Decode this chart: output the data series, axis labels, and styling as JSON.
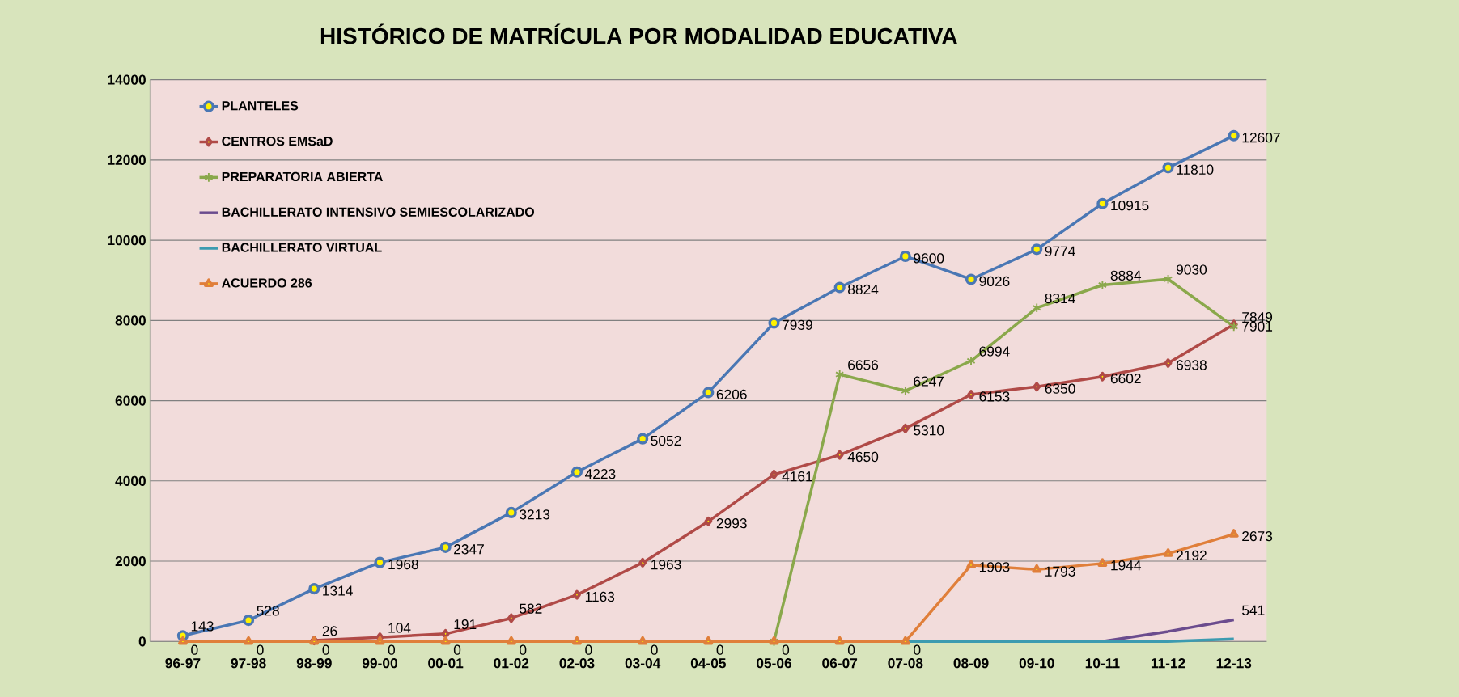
{
  "chart_data": {
    "type": "line",
    "title": "HISTÓRICO DE MATRÍCULA POR MODALIDAD EDUCATIVA",
    "categories": [
      "96-97",
      "97-98",
      "98-99",
      "99-00",
      "00-01",
      "01-02",
      "02-03",
      "03-04",
      "04-05",
      "05-06",
      "06-07",
      "07-08",
      "08-09",
      "09-10",
      "10-11",
      "11-12",
      "12-13"
    ],
    "ylim": [
      0,
      14000
    ],
    "yticks": [
      0,
      2000,
      4000,
      6000,
      8000,
      10000,
      12000,
      14000
    ],
    "grid": "y",
    "legend": "top left",
    "series": [
      {
        "name": "PLANTELES",
        "color": "#4a77b4",
        "marker": "circle",
        "values": [
          143,
          528,
          1314,
          1968,
          2347,
          3213,
          4223,
          5052,
          6206,
          7939,
          8824,
          9600,
          9026,
          9774,
          10915,
          11810,
          12607
        ],
        "value_labels": [
          "143",
          "528",
          "1314",
          "1968",
          "2347",
          "3213",
          "4223",
          "5052",
          "6206",
          "7939",
          "8824",
          "9600",
          "9026",
          "9774",
          "10915",
          "11810",
          "12607"
        ]
      },
      {
        "name": "CENTROS EMSaD",
        "color": "#b04a47",
        "marker": "diamond",
        "values": [
          null,
          null,
          26,
          104,
          191,
          582,
          1163,
          1963,
          2993,
          4161,
          4650,
          5310,
          6153,
          6350,
          6602,
          6938,
          7901
        ],
        "value_labels": [
          null,
          null,
          "26",
          "104",
          "191",
          "582",
          "1163",
          "1963",
          "2993",
          "4161",
          "4650",
          "5310",
          "6153",
          "6350",
          "6602",
          "6938",
          "7901"
        ]
      },
      {
        "name": "PREPARATORIA ABIERTA",
        "color": "#8aa84b",
        "marker": "cross",
        "values": [
          null,
          null,
          null,
          null,
          null,
          null,
          null,
          null,
          null,
          0,
          6656,
          6247,
          6994,
          8314,
          8884,
          9030,
          7849
        ],
        "value_labels": [
          null,
          null,
          null,
          null,
          null,
          null,
          null,
          null,
          null,
          null,
          "6656",
          "6247",
          "6994",
          "8314",
          "8884",
          "9030",
          "7849"
        ]
      },
      {
        "name": "BACHILLERATO INTENSIVO SEMIESCOLARIZADO",
        "color": "#6b4c8e",
        "marker": "none",
        "values": [
          null,
          null,
          null,
          null,
          null,
          null,
          null,
          null,
          null,
          null,
          null,
          null,
          null,
          null,
          0,
          250,
          541
        ],
        "value_labels": [
          null,
          null,
          null,
          null,
          null,
          null,
          null,
          null,
          null,
          null,
          null,
          null,
          null,
          null,
          null,
          null,
          "541"
        ]
      },
      {
        "name": "BACHILLERATO VIRTUAL",
        "color": "#3c9bb0",
        "marker": "none",
        "values": [
          null,
          null,
          null,
          null,
          null,
          null,
          null,
          null,
          null,
          null,
          null,
          0,
          0,
          0,
          0,
          0,
          60
        ]
      },
      {
        "name": "ACUERDO 286",
        "color": "#e07f3a",
        "marker": "triangle",
        "values": [
          0,
          0,
          0,
          0,
          0,
          0,
          0,
          0,
          0,
          0,
          0,
          0,
          1903,
          1793,
          1944,
          2192,
          2673
        ],
        "value_labels": [
          "0",
          "0",
          "0",
          "0",
          "0",
          "0",
          "0",
          "0",
          "0",
          "0",
          "0",
          "0",
          "1903",
          "1793",
          "1944",
          "2192",
          "2673"
        ]
      }
    ]
  }
}
